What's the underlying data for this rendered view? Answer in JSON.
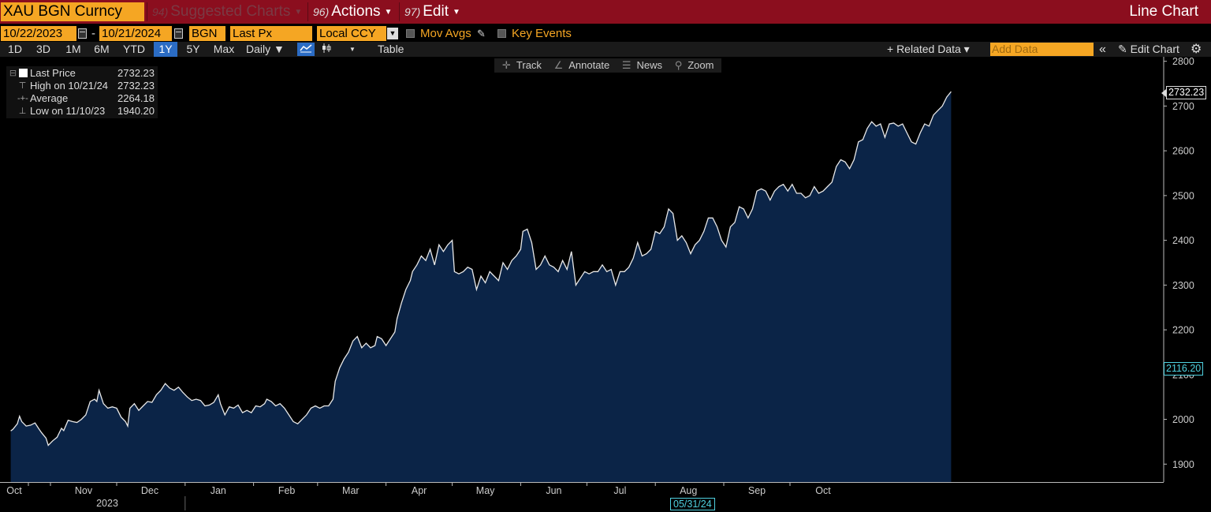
{
  "topbar": {
    "security": "XAU BGN Curncy",
    "suggested": {
      "num": "94)",
      "label": "Suggested Charts"
    },
    "actions": {
      "num": "96)",
      "label": "Actions"
    },
    "edit": {
      "num": "97)",
      "label": "Edit"
    },
    "window_title": "Line Chart"
  },
  "params": {
    "start_date": "10/22/2023",
    "date_separator": "-",
    "end_date": "10/21/2024",
    "source": "BGN",
    "field": "Last Px",
    "currency": "Local CCY",
    "mov_avgs": "Mov Avgs",
    "key_events": "Key Events"
  },
  "toolbar": {
    "periods": [
      "1D",
      "3D",
      "1M",
      "6M",
      "YTD",
      "1Y",
      "5Y",
      "Max"
    ],
    "active_period": "1Y",
    "frequency": "Daily ▼",
    "table": "Table",
    "related_data": "+ Related Data ▾",
    "add_data_placeholder": "Add Data",
    "collapse": "«",
    "edit_chart": "Edit Chart"
  },
  "chart_tools": {
    "track": "Track",
    "annotate": "Annotate",
    "news": "News",
    "zoom": "Zoom"
  },
  "legend": {
    "last": {
      "label": "Last Price",
      "value": "2732.23"
    },
    "high": {
      "label": "High on 10/21/24",
      "value": "2732.23"
    },
    "average": {
      "label": "Average",
      "value": "2264.18"
    },
    "low": {
      "label": "Low on 11/10/23",
      "value": "1940.20"
    }
  },
  "crosshair": {
    "price": "2116.20",
    "date": "05/31/24"
  },
  "colors": {
    "title_bar": "#8b0e1e",
    "field_orange": "#f5a623",
    "active_blue": "#2b6cc4",
    "area_fill": "#0b2447",
    "line": "#e8e8e8",
    "crosshair": "#4fd1e0"
  },
  "chart_data": {
    "type": "area",
    "ylim": [
      1860,
      2810
    ],
    "yticks": [
      1900,
      2000,
      2100,
      2200,
      2300,
      2400,
      2500,
      2600,
      2700,
      2800
    ],
    "xticks": [
      {
        "label": "Oct",
        "day": 0
      },
      {
        "label": "Nov",
        "day": 10
      },
      {
        "label": "Dec",
        "day": 40
      },
      {
        "label": "Jan",
        "day": 71
      },
      {
        "label": "Feb",
        "day": 102
      },
      {
        "label": "Mar",
        "day": 131
      },
      {
        "label": "Apr",
        "day": 162
      },
      {
        "label": "May",
        "day": 192
      },
      {
        "label": "Jun",
        "day": 223
      },
      {
        "label": "Jul",
        "day": 253
      },
      {
        "label": "Aug",
        "day": 284
      },
      {
        "label": "Sep",
        "day": 315
      },
      {
        "label": "Oct",
        "day": 345
      }
    ],
    "year_label": "2023",
    "last_value": 2732.23,
    "series": [
      {
        "points": [
          [
            -8,
            1974
          ],
          [
            -7,
            1978
          ],
          [
            -5,
            1990
          ],
          [
            -4,
            2007
          ],
          [
            -3,
            1995
          ],
          [
            -1,
            1985
          ],
          [
            1,
            1987
          ],
          [
            3,
            1992
          ],
          [
            5,
            1977
          ],
          [
            6,
            1970
          ],
          [
            8,
            1958
          ],
          [
            9,
            1942
          ],
          [
            11,
            1952
          ],
          [
            13,
            1960
          ],
          [
            15,
            1980
          ],
          [
            16,
            1975
          ],
          [
            18,
            1998
          ],
          [
            20,
            1995
          ],
          [
            22,
            1993
          ],
          [
            24,
            2000
          ],
          [
            26,
            2010
          ],
          [
            28,
            2040
          ],
          [
            30,
            2045
          ],
          [
            31,
            2040
          ],
          [
            32,
            2065
          ],
          [
            34,
            2035
          ],
          [
            36,
            2025
          ],
          [
            38,
            2028
          ],
          [
            40,
            2025
          ],
          [
            42,
            2005
          ],
          [
            44,
            1995
          ],
          [
            45,
            1985
          ],
          [
            46,
            2025
          ],
          [
            48,
            2035
          ],
          [
            50,
            2020
          ],
          [
            52,
            2030
          ],
          [
            54,
            2040
          ],
          [
            56,
            2038
          ],
          [
            58,
            2055
          ],
          [
            60,
            2065
          ],
          [
            62,
            2080
          ],
          [
            64,
            2070
          ],
          [
            66,
            2065
          ],
          [
            68,
            2072
          ],
          [
            70,
            2060
          ],
          [
            72,
            2050
          ],
          [
            74,
            2042
          ],
          [
            76,
            2045
          ],
          [
            78,
            2042
          ],
          [
            80,
            2030
          ],
          [
            82,
            2032
          ],
          [
            84,
            2038
          ],
          [
            86,
            2055
          ],
          [
            87,
            2035
          ],
          [
            89,
            2010
          ],
          [
            91,
            2028
          ],
          [
            93,
            2025
          ],
          [
            95,
            2032
          ],
          [
            97,
            2015
          ],
          [
            99,
            2020
          ],
          [
            101,
            2015
          ],
          [
            103,
            2030
          ],
          [
            105,
            2028
          ],
          [
            107,
            2035
          ],
          [
            108,
            2045
          ],
          [
            110,
            2040
          ],
          [
            112,
            2030
          ],
          [
            114,
            2035
          ],
          [
            116,
            2025
          ],
          [
            118,
            2010
          ],
          [
            120,
            1995
          ],
          [
            122,
            1990
          ],
          [
            124,
            2000
          ],
          [
            126,
            2010
          ],
          [
            128,
            2025
          ],
          [
            130,
            2030
          ],
          [
            132,
            2025
          ],
          [
            134,
            2030
          ],
          [
            136,
            2030
          ],
          [
            138,
            2045
          ],
          [
            139,
            2085
          ],
          [
            141,
            2115
          ],
          [
            143,
            2135
          ],
          [
            145,
            2150
          ],
          [
            147,
            2175
          ],
          [
            149,
            2185
          ],
          [
            151,
            2160
          ],
          [
            153,
            2170
          ],
          [
            155,
            2160
          ],
          [
            157,
            2165
          ],
          [
            158,
            2185
          ],
          [
            160,
            2180
          ],
          [
            162,
            2165
          ],
          [
            164,
            2180
          ],
          [
            166,
            2195
          ],
          [
            167,
            2225
          ],
          [
            169,
            2260
          ],
          [
            171,
            2290
          ],
          [
            173,
            2310
          ],
          [
            174,
            2330
          ],
          [
            176,
            2345
          ],
          [
            178,
            2365
          ],
          [
            180,
            2355
          ],
          [
            182,
            2380
          ],
          [
            184,
            2345
          ],
          [
            186,
            2390
          ],
          [
            188,
            2375
          ],
          [
            190,
            2390
          ],
          [
            192,
            2400
          ],
          [
            193,
            2330
          ],
          [
            195,
            2325
          ],
          [
            197,
            2330
          ],
          [
            199,
            2340
          ],
          [
            201,
            2335
          ],
          [
            203,
            2290
          ],
          [
            205,
            2320
          ],
          [
            207,
            2305
          ],
          [
            209,
            2330
          ],
          [
            211,
            2320
          ],
          [
            213,
            2310
          ],
          [
            215,
            2350
          ],
          [
            217,
            2335
          ],
          [
            219,
            2355
          ],
          [
            221,
            2365
          ],
          [
            223,
            2380
          ],
          [
            224,
            2420
          ],
          [
            226,
            2425
          ],
          [
            228,
            2395
          ],
          [
            230,
            2335
          ],
          [
            232,
            2345
          ],
          [
            234,
            2365
          ],
          [
            236,
            2345
          ],
          [
            238,
            2340
          ],
          [
            240,
            2330
          ],
          [
            242,
            2355
          ],
          [
            244,
            2335
          ],
          [
            246,
            2375
          ],
          [
            248,
            2300
          ],
          [
            250,
            2315
          ],
          [
            252,
            2330
          ],
          [
            254,
            2325
          ],
          [
            256,
            2330
          ],
          [
            258,
            2330
          ],
          [
            260,
            2345
          ],
          [
            262,
            2330
          ],
          [
            264,
            2335
          ],
          [
            266,
            2300
          ],
          [
            268,
            2330
          ],
          [
            270,
            2330
          ],
          [
            272,
            2340
          ],
          [
            274,
            2360
          ],
          [
            276,
            2395
          ],
          [
            278,
            2365
          ],
          [
            280,
            2370
          ],
          [
            282,
            2380
          ],
          [
            284,
            2420
          ],
          [
            286,
            2415
          ],
          [
            288,
            2430
          ],
          [
            290,
            2470
          ],
          [
            292,
            2460
          ],
          [
            294,
            2400
          ],
          [
            296,
            2410
          ],
          [
            298,
            2395
          ],
          [
            300,
            2370
          ],
          [
            302,
            2390
          ],
          [
            304,
            2400
          ],
          [
            306,
            2420
          ],
          [
            308,
            2450
          ],
          [
            310,
            2450
          ],
          [
            312,
            2430
          ],
          [
            314,
            2400
          ],
          [
            316,
            2385
          ],
          [
            318,
            2430
          ],
          [
            320,
            2440
          ],
          [
            322,
            2475
          ],
          [
            324,
            2470
          ],
          [
            326,
            2450
          ],
          [
            328,
            2470
          ],
          [
            330,
            2510
          ],
          [
            332,
            2515
          ],
          [
            334,
            2510
          ],
          [
            336,
            2490
          ],
          [
            338,
            2510
          ],
          [
            340,
            2520
          ],
          [
            342,
            2525
          ],
          [
            344,
            2510
          ],
          [
            346,
            2525
          ],
          [
            348,
            2505
          ],
          [
            350,
            2505
          ],
          [
            352,
            2495
          ],
          [
            354,
            2500
          ],
          [
            356,
            2520
          ],
          [
            358,
            2505
          ],
          [
            360,
            2510
          ],
          [
            362,
            2520
          ],
          [
            364,
            2530
          ],
          [
            366,
            2565
          ],
          [
            368,
            2580
          ],
          [
            370,
            2575
          ],
          [
            372,
            2560
          ],
          [
            374,
            2580
          ],
          [
            376,
            2620
          ],
          [
            378,
            2625
          ],
          [
            380,
            2650
          ],
          [
            382,
            2665
          ],
          [
            384,
            2655
          ],
          [
            386,
            2660
          ],
          [
            388,
            2630
          ],
          [
            390,
            2660
          ],
          [
            392,
            2662
          ],
          [
            394,
            2655
          ],
          [
            396,
            2660
          ],
          [
            398,
            2640
          ],
          [
            400,
            2620
          ],
          [
            402,
            2615
          ],
          [
            404,
            2640
          ],
          [
            406,
            2660
          ],
          [
            408,
            2655
          ],
          [
            410,
            2680
          ],
          [
            412,
            2690
          ],
          [
            414,
            2700
          ],
          [
            416,
            2720
          ],
          [
            418,
            2732.23
          ]
        ]
      }
    ]
  }
}
